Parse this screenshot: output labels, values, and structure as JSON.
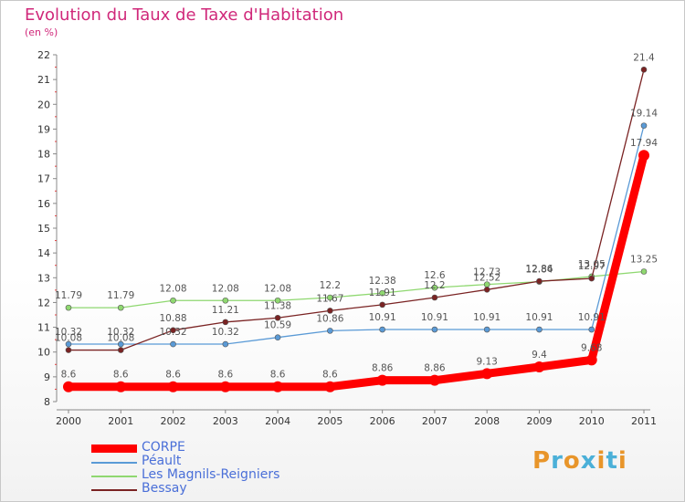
{
  "chart_data": {
    "type": "line",
    "title": "Evolution du Taux de Taxe d'Habitation",
    "ylabel": "(en %)",
    "xlabel": "",
    "x": [
      "2000",
      "2001",
      "2002",
      "2003",
      "2004",
      "2005",
      "2006",
      "2007",
      "2008",
      "2009",
      "2010",
      "2011"
    ],
    "ylim": [
      8,
      22
    ],
    "yticks": [
      "8",
      "9",
      "10",
      "11",
      "12",
      "13",
      "14",
      "15",
      "16",
      "17",
      "18",
      "19",
      "20",
      "21",
      "22"
    ],
    "series": [
      {
        "name": "CORPE",
        "color": "#ff0000",
        "values": [
          8.6,
          8.6,
          8.6,
          8.6,
          8.6,
          8.6,
          8.86,
          8.86,
          9.13,
          9.4,
          9.68,
          17.94
        ],
        "labels": [
          "8.6",
          "8.6",
          "8.6",
          "8.6",
          "8.6",
          "8.6",
          "8.86",
          "8.86",
          "9.13",
          "9.4",
          "9.68",
          "17.94"
        ]
      },
      {
        "name": "Péault",
        "color": "#5a9ad6",
        "values": [
          10.32,
          10.32,
          10.32,
          10.32,
          10.59,
          10.86,
          10.91,
          10.91,
          10.91,
          10.91,
          10.91,
          19.14
        ],
        "labels": [
          "10.32",
          "10.32",
          "10.32",
          "10.32",
          "10.59",
          "10.86",
          "10.91",
          "10.91",
          "10.91",
          "10.91",
          "10.91",
          "19.14"
        ]
      },
      {
        "name": "Les Magnils-Reigniers",
        "color": "#8fd870",
        "values": [
          11.79,
          11.79,
          12.08,
          12.08,
          12.08,
          12.2,
          12.38,
          12.6,
          12.73,
          12.84,
          13.05,
          13.25
        ],
        "labels": [
          "11.79",
          "11.79",
          "12.08",
          "12.08",
          "12.08",
          "12.2",
          "12.38",
          "12.6",
          "12.73",
          "12.84",
          "13.05",
          "13.25"
        ]
      },
      {
        "name": "Bessay",
        "color": "#7a2323",
        "values": [
          10.08,
          10.08,
          10.88,
          11.21,
          11.38,
          11.67,
          11.91,
          12.2,
          12.52,
          12.86,
          12.97,
          21.4
        ],
        "labels": [
          "10.08",
          "10.08",
          "10.88",
          "11.21",
          "11.38",
          "11.67",
          "11.91",
          "12.2",
          "12.52",
          "12.86",
          "12.97",
          "21.4"
        ]
      }
    ],
    "legend_position": "bottom-left",
    "grid": false
  },
  "logo": {
    "text": "Proxiti",
    "colors": [
      "#e8952a",
      "#4bb0d8",
      "#e8952a",
      "#4bb0d8",
      "#e8952a",
      "#4bb0d8",
      "#e8952a"
    ]
  }
}
